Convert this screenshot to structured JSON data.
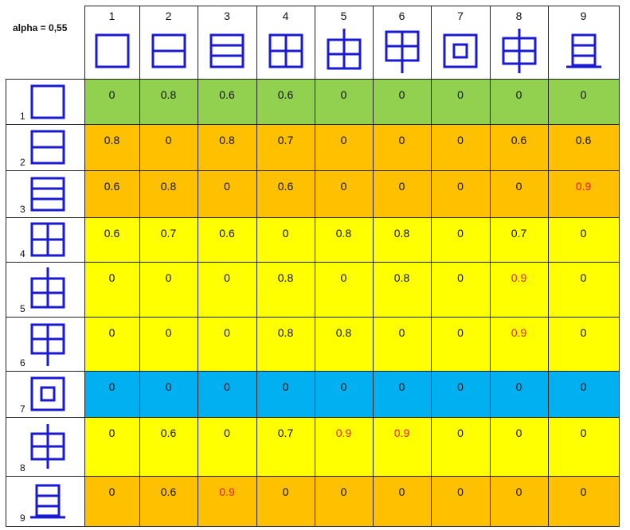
{
  "corner_label": "alpha = 0,55",
  "colors": {
    "green": "#92d050",
    "orange": "#ffc000",
    "yellow": "#ffff00",
    "blue": "#00b0f0",
    "highlight_text": "#ff0000",
    "glyph": "#1a1ad0"
  },
  "columns": [
    {
      "number": "1",
      "glyph": "square-glyph"
    },
    {
      "number": "2",
      "glyph": "square-two-rows-glyph"
    },
    {
      "number": "3",
      "glyph": "square-three-rows-glyph"
    },
    {
      "number": "4",
      "glyph": "square-four-cells-glyph"
    },
    {
      "number": "5",
      "glyph": "four-cells-top-stem-glyph"
    },
    {
      "number": "6",
      "glyph": "four-cells-bottom-stem-glyph"
    },
    {
      "number": "7",
      "glyph": "nested-square-glyph"
    },
    {
      "number": "8",
      "glyph": "four-cells-both-stems-glyph"
    },
    {
      "number": "9",
      "glyph": "three-rows-base-glyph"
    }
  ],
  "rows": [
    {
      "number": "1",
      "glyph": "square-glyph",
      "color": "green",
      "values": [
        "0",
        "0.8",
        "0.6",
        "0.6",
        "0",
        "0",
        "0",
        "0",
        "0"
      ],
      "highlight": []
    },
    {
      "number": "2",
      "glyph": "square-two-rows-glyph",
      "color": "orange",
      "values": [
        "0.8",
        "0",
        "0.8",
        "0.7",
        "0",
        "0",
        "0",
        "0.6",
        "0.6"
      ],
      "highlight": []
    },
    {
      "number": "3",
      "glyph": "square-three-rows-glyph",
      "color": "orange",
      "values": [
        "0.6",
        "0.8",
        "0",
        "0.6",
        "0",
        "0",
        "0",
        "0",
        "0.9"
      ],
      "highlight": [
        8
      ]
    },
    {
      "number": "4",
      "glyph": "square-four-cells-glyph",
      "color": "yellow",
      "values": [
        "0.6",
        "0.7",
        "0.6",
        "0",
        "0.8",
        "0.8",
        "0",
        "0.7",
        "0"
      ],
      "highlight": []
    },
    {
      "number": "5",
      "glyph": "four-cells-top-stem-glyph",
      "color": "yellow",
      "values": [
        "0",
        "0",
        "0",
        "0.8",
        "0",
        "0.8",
        "0",
        "0.9",
        "0"
      ],
      "highlight": [
        7
      ]
    },
    {
      "number": "6",
      "glyph": "four-cells-bottom-stem-glyph",
      "color": "yellow",
      "values": [
        "0",
        "0",
        "0",
        "0.8",
        "0.8",
        "0",
        "0",
        "0.9",
        "0"
      ],
      "highlight": [
        7
      ]
    },
    {
      "number": "7",
      "glyph": "nested-square-glyph",
      "color": "blue",
      "values": [
        "0",
        "0",
        "0",
        "0",
        "0",
        "0",
        "0",
        "0",
        "0"
      ],
      "highlight": []
    },
    {
      "number": "8",
      "glyph": "four-cells-both-stems-glyph",
      "color": "yellow",
      "values": [
        "0",
        "0.6",
        "0",
        "0.7",
        "0.9",
        "0.9",
        "0",
        "0",
        "0"
      ],
      "highlight": [
        4,
        5
      ]
    },
    {
      "number": "9",
      "glyph": "three-rows-base-glyph",
      "color": "orange",
      "values": [
        "0",
        "0.6",
        "0.9",
        "0",
        "0",
        "0",
        "0",
        "0",
        "0"
      ],
      "highlight": [
        2
      ]
    }
  ]
}
